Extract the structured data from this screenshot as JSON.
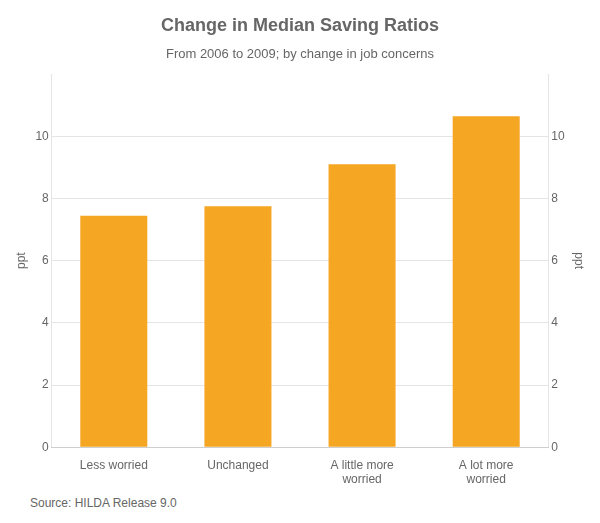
{
  "chart_data": {
    "type": "bar",
    "title": "Change in Median Saving Ratios",
    "subtitle": "From 2006 to 2009; by change in job concerns",
    "categories": [
      "Less worried",
      "Unchanged",
      "A little more\nworried",
      "A lot more\nworried"
    ],
    "values": [
      7.45,
      7.75,
      9.1,
      10.65
    ],
    "color": "#F5A623",
    "ylim": [
      0,
      12
    ],
    "yticks": [
      0,
      2,
      4,
      6,
      8,
      10
    ],
    "y2lim": [
      0,
      12
    ],
    "y2ticks": [
      0,
      2,
      4,
      6,
      8,
      10
    ],
    "ylabel": "ppt",
    "y2label": "ppt",
    "source": "Source: HILDA Release 9.0",
    "grid": true
  }
}
